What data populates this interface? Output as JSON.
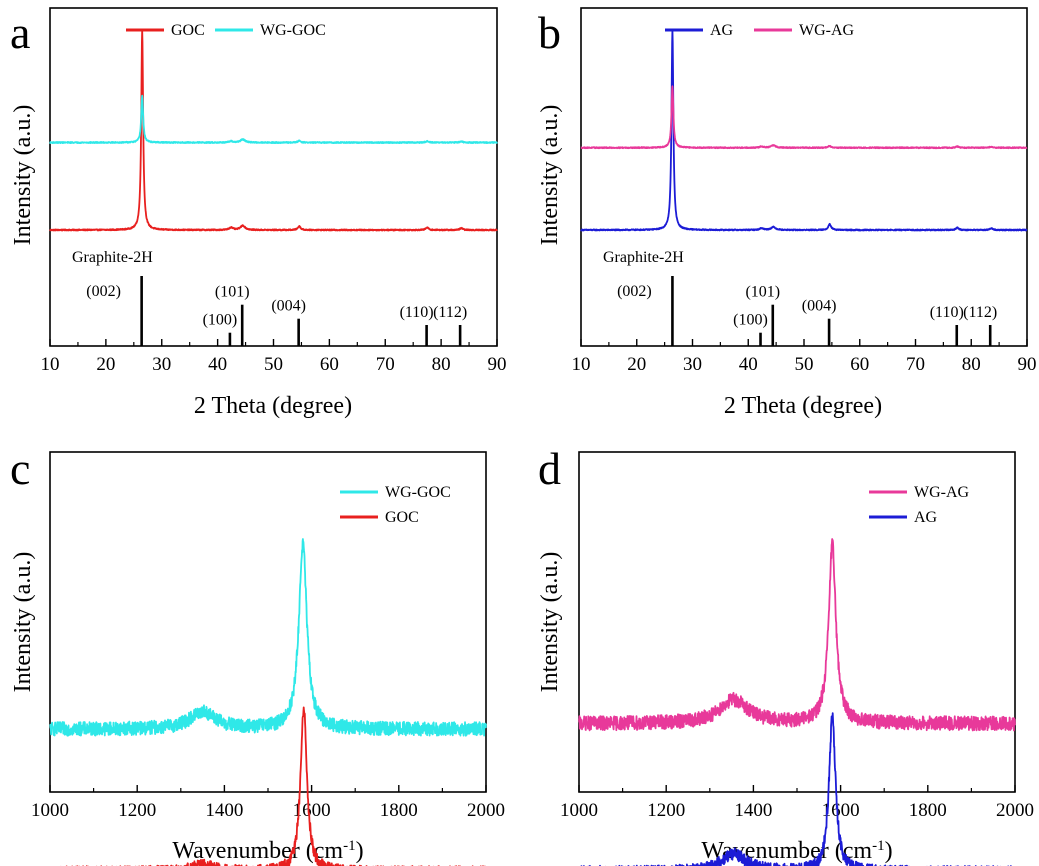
{
  "chart_data": [
    {
      "panel": "a",
      "type": "line",
      "xlabel": "2 Theta (degree)",
      "ylabel": "Intensity (a.u.)",
      "xlim": [
        10,
        90
      ],
      "xticks": [
        10,
        20,
        30,
        40,
        50,
        60,
        70,
        80,
        90
      ],
      "legend_position": "top",
      "series": [
        {
          "name": "GOC",
          "color": "#e8201f",
          "baseline": 0.4,
          "noise": 0.003,
          "peaks": [
            {
              "x": 26.5,
              "h": 3.2,
              "w": 0.2
            },
            {
              "x": 42.4,
              "h": 0.04,
              "w": 0.4
            },
            {
              "x": 44.5,
              "h": 0.07,
              "w": 0.5
            },
            {
              "x": 54.6,
              "h": 0.06,
              "w": 0.3
            },
            {
              "x": 77.5,
              "h": 0.04,
              "w": 0.3
            },
            {
              "x": 83.6,
              "h": 0.03,
              "w": 0.3
            }
          ]
        },
        {
          "name": "WG-GOC",
          "color": "#2fe8e8",
          "baseline": 1.8,
          "noise": 0.003,
          "peaks": [
            {
              "x": 26.5,
              "h": 0.75,
              "w": 0.2
            },
            {
              "x": 42.4,
              "h": 0.02,
              "w": 0.4
            },
            {
              "x": 44.5,
              "h": 0.05,
              "w": 0.5
            },
            {
              "x": 54.6,
              "h": 0.03,
              "w": 0.3
            },
            {
              "x": 77.5,
              "h": 0.02,
              "w": 0.3
            },
            {
              "x": 83.6,
              "h": 0.02,
              "w": 0.3
            }
          ]
        }
      ],
      "reference": {
        "name": "Graphite-2H",
        "lines": [
          {
            "x": 26.4,
            "label": "(002)",
            "rel": 1.0
          },
          {
            "x": 42.2,
            "label": "(100)",
            "rel": 0.19
          },
          {
            "x": 44.4,
            "label": "(101)",
            "rel": 0.59
          },
          {
            "x": 54.5,
            "label": "(004)",
            "rel": 0.39
          },
          {
            "x": 77.4,
            "label": "(110)",
            "rel": 0.3
          },
          {
            "x": 83.4,
            "label": "(112)",
            "rel": 0.3
          }
        ]
      }
    },
    {
      "panel": "b",
      "type": "line",
      "xlabel": "2 Theta (degree)",
      "ylabel": "Intensity (a.u.)",
      "xlim": [
        10,
        90
      ],
      "xticks": [
        10,
        20,
        30,
        40,
        50,
        60,
        70,
        80,
        90
      ],
      "legend_position": "top",
      "series": [
        {
          "name": "AG",
          "color": "#1c1cd6",
          "baseline": 0.4,
          "noise": 0.003,
          "peaks": [
            {
              "x": 26.4,
              "h": 3.4,
              "w": 0.2
            },
            {
              "x": 42.4,
              "h": 0.03,
              "w": 0.4
            },
            {
              "x": 44.5,
              "h": 0.05,
              "w": 0.5
            },
            {
              "x": 54.6,
              "h": 0.1,
              "w": 0.3
            },
            {
              "x": 77.5,
              "h": 0.04,
              "w": 0.3
            },
            {
              "x": 83.6,
              "h": 0.03,
              "w": 0.3
            }
          ]
        },
        {
          "name": "WG-AG",
          "color": "#e8399a",
          "baseline": 1.8,
          "noise": 0.003,
          "peaks": [
            {
              "x": 26.4,
              "h": 1.05,
              "w": 0.2
            },
            {
              "x": 42.4,
              "h": 0.02,
              "w": 0.4
            },
            {
              "x": 44.5,
              "h": 0.04,
              "w": 0.5
            },
            {
              "x": 54.6,
              "h": 0.03,
              "w": 0.3
            },
            {
              "x": 77.5,
              "h": 0.02,
              "w": 0.3
            },
            {
              "x": 83.6,
              "h": 0.02,
              "w": 0.3
            }
          ]
        }
      ],
      "reference": {
        "name": "Graphite-2H",
        "lines": [
          {
            "x": 26.4,
            "label": "(002)",
            "rel": 1.0
          },
          {
            "x": 42.2,
            "label": "(100)",
            "rel": 0.19
          },
          {
            "x": 44.4,
            "label": "(101)",
            "rel": 0.59
          },
          {
            "x": 54.5,
            "label": "(004)",
            "rel": 0.39
          },
          {
            "x": 77.4,
            "label": "(110)",
            "rel": 0.3
          },
          {
            "x": 83.4,
            "label": "(112)",
            "rel": 0.3
          }
        ]
      }
    },
    {
      "panel": "c",
      "type": "line",
      "xlabel": "Wavenumber (cm",
      "xlabel_sup": "-1",
      "xlabel_end": ")",
      "ylabel": "Intensity (a.u.)",
      "xlim": [
        1000,
        2000
      ],
      "xticks": [
        1000,
        1200,
        1400,
        1600,
        1800,
        2000
      ],
      "legend_position": "top-right",
      "series": [
        {
          "name": "WG-GOC",
          "color": "#2fe8e8",
          "baseline": 1.0,
          "noise": 0.012,
          "peaks": [
            {
              "x": 1350,
              "h": 0.12,
              "w": 35
            },
            {
              "x": 1580,
              "h": 1.3,
              "w": 11
            }
          ]
        },
        {
          "name": "GOC",
          "color": "#e8201f",
          "baseline": 0.0,
          "noise": 0.01,
          "peaks": [
            {
              "x": 1350,
              "h": 0.05,
              "w": 30
            },
            {
              "x": 1582,
              "h": 1.15,
              "w": 9
            }
          ]
        }
      ]
    },
    {
      "panel": "d",
      "type": "line",
      "xlabel": "Wavenumber (cm",
      "xlabel_sup": "-1",
      "xlabel_end": ")",
      "ylabel": "Intensity (a.u.)",
      "xlim": [
        1000,
        2000
      ],
      "xticks": [
        1000,
        1200,
        1400,
        1600,
        1800,
        2000
      ],
      "legend_position": "top-right",
      "series": [
        {
          "name": "WG-AG",
          "color": "#e8399a",
          "baseline": 1.0,
          "noise": 0.012,
          "peaks": [
            {
              "x": 1355,
              "h": 0.16,
              "w": 40
            },
            {
              "x": 1581,
              "h": 1.2,
              "w": 10
            }
          ]
        },
        {
          "name": "AG",
          "color": "#1c1cd6",
          "baseline": 0.0,
          "noise": 0.01,
          "peaks": [
            {
              "x": 1355,
              "h": 0.12,
              "w": 35
            },
            {
              "x": 1581,
              "h": 1.05,
              "w": 9
            }
          ]
        }
      ]
    }
  ]
}
